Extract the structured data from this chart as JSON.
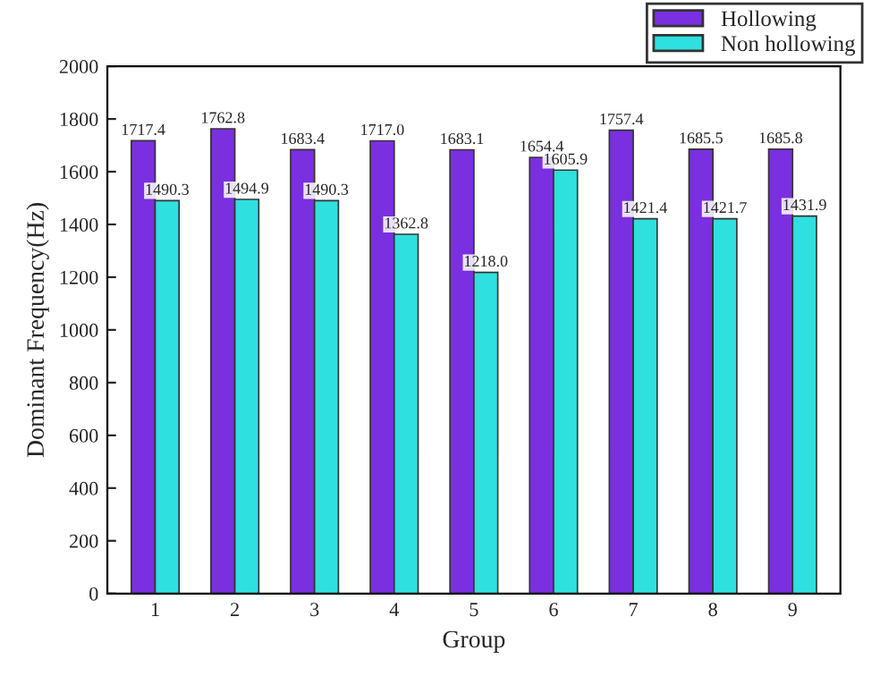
{
  "chart_data": {
    "type": "bar",
    "xlabel": "Group",
    "ylabel": "Dominant Frequency(Hz)",
    "categories": [
      "1",
      "2",
      "3",
      "4",
      "5",
      "6",
      "7",
      "8",
      "9"
    ],
    "series": [
      {
        "name": "Hollowing",
        "color": "#7a2fe0",
        "values": [
          1717.4,
          1762.8,
          1683.4,
          1717.0,
          1683.1,
          1654.4,
          1757.4,
          1685.5,
          1685.8
        ],
        "value_labels": [
          "1717.4",
          "1762.8",
          "1683.4",
          "1717.0",
          "1683.1",
          "1654.4",
          "1757.4",
          "1685.5",
          "1685.8"
        ]
      },
      {
        "name": "Non hollowing",
        "color": "#2fe0e0",
        "values": [
          1490.3,
          1494.9,
          1490.3,
          1362.8,
          1218.0,
          1605.9,
          1421.4,
          1421.7,
          1431.9
        ],
        "value_labels": [
          "1490.3",
          "1494.9",
          "1490.3",
          "1362.8",
          "1218.0",
          "1605.9",
          "1421.4",
          "1421.7",
          "1431.9"
        ]
      }
    ],
    "ylim": [
      0,
      2000
    ],
    "yticks": [
      0,
      200,
      400,
      600,
      800,
      1000,
      1200,
      1400,
      1600,
      1800,
      2000
    ],
    "grid": false,
    "legend": "top right"
  }
}
